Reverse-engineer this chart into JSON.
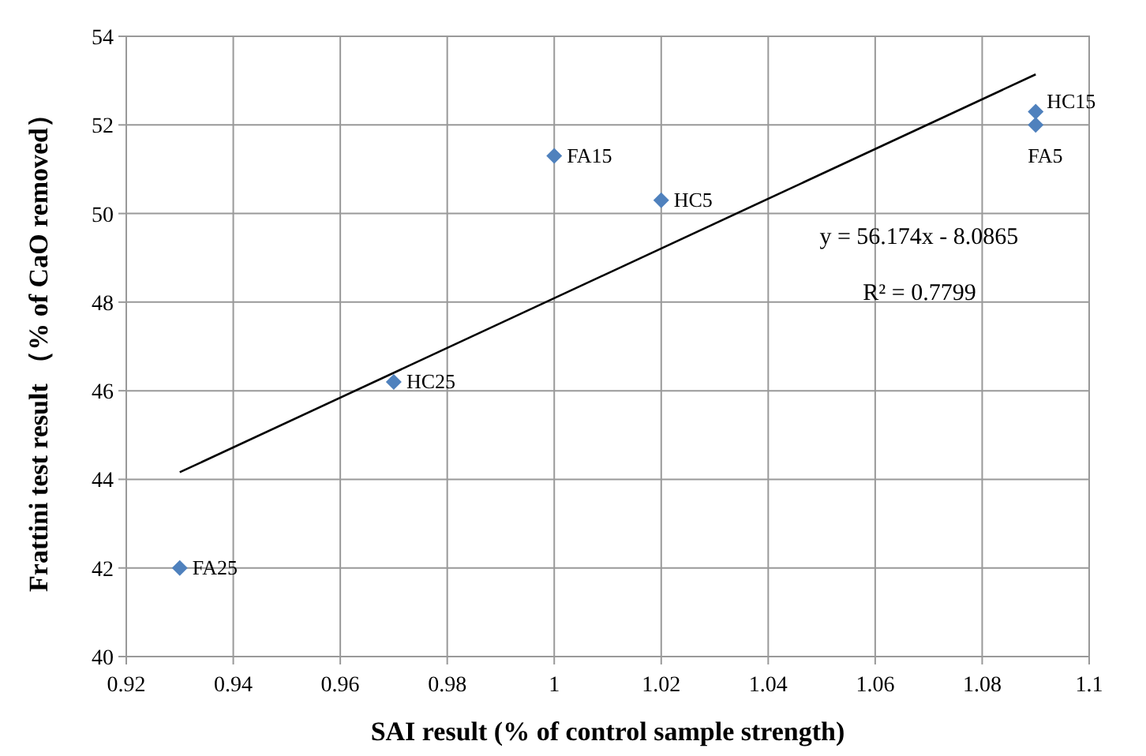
{
  "chart_data": {
    "type": "scatter",
    "xlabel": "SAI result (% of control sample strength)",
    "ylabel": "Frattini test result （% of CaO removed）",
    "series": [
      {
        "color": "#4f81bd",
        "marker": "diamond",
        "x": [
          0.93,
          0.97,
          1.0,
          1.02,
          1.09,
          1.09
        ],
        "values": [
          42.0,
          46.2,
          51.3,
          50.3,
          52.3,
          52.0
        ]
      },
      {
        "type": "line",
        "color": "#000000",
        "marker": "none",
        "x": [
          0.93,
          1.09
        ],
        "values": [
          44.16,
          53.14
        ]
      }
    ],
    "annotations": [
      {
        "text": "FA25",
        "x": 0.93,
        "y": 42.0
      },
      {
        "text": "HC25",
        "x": 0.97,
        "y": 46.2
      },
      {
        "text": "FA15",
        "x": 1.0,
        "y": 51.3
      },
      {
        "text": "HC5",
        "x": 1.02,
        "y": 50.3
      },
      {
        "text": "HC15",
        "x": 1.09,
        "y": 52.3
      },
      {
        "text": "FA5",
        "x": 1.09,
        "y": 52.0
      },
      "y = 56.174x - 8.0865",
      "R² = 0.7799"
    ],
    "xlim": [
      0.92,
      1.1
    ],
    "xticks": [
      0.92,
      0.94,
      0.96,
      0.98,
      {
        "value": 1.0,
        "label": "1"
      },
      1.02,
      1.04,
      1.06,
      1.08,
      1.1
    ],
    "ylim": [
      40,
      54
    ],
    "yticks": [
      40,
      42,
      44,
      46,
      48,
      50,
      52,
      54
    ],
    "grid": true
  }
}
